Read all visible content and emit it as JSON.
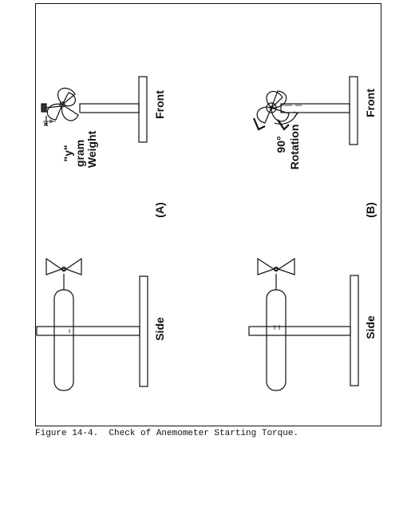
{
  "figure": {
    "caption": "Figure 14-4.  Check of Anemometer Starting Torque.",
    "panel_a_label": "(A)",
    "panel_b_label": "(B)",
    "front_label": "Front",
    "side_label": "Side",
    "x_label": "x",
    "weight_label_line1": "\"y\"",
    "weight_label_line2": "gram",
    "weight_label_line3": "Weight",
    "rotation_label_line1": "90°",
    "rotation_label_line2": "Rotation"
  }
}
